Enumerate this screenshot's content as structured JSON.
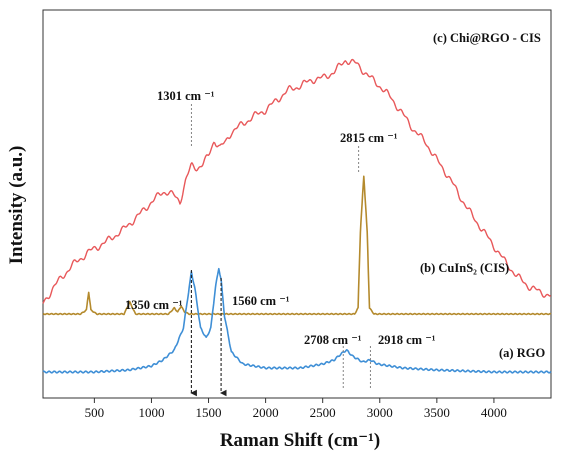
{
  "chart_data": {
    "type": "line",
    "xlabel": "Raman Shift (cm⁻¹)",
    "ylabel": "Intensity (a.u.)",
    "xlim": [
      50,
      4500
    ],
    "x_ticks": [
      500,
      1000,
      1500,
      2000,
      2500,
      3000,
      3500,
      4000
    ],
    "x_tick_labels": [
      "500",
      "1000",
      "1500",
      "2000",
      "2500",
      "3000",
      "3500",
      "4000"
    ],
    "y_ticks_shown": false,
    "grid": false,
    "series": [
      {
        "name": "(c) Chi@RGO - CIS",
        "color": "#e8585a",
        "x": [
          50,
          150,
          300,
          450,
          600,
          750,
          900,
          1000,
          1100,
          1150,
          1200,
          1250,
          1300,
          1350,
          1400,
          1450,
          1500,
          1550,
          1600,
          1650,
          1700,
          1800,
          1900,
          2000,
          2100,
          2200,
          2300,
          2400,
          2500,
          2600,
          2700,
          2800,
          2900,
          3000,
          3100,
          3200,
          3300,
          3400,
          3500,
          3600,
          3700,
          3800,
          3900,
          4000,
          4100,
          4200,
          4300,
          4400,
          4500
        ],
        "y": [
          0.34,
          0.43,
          0.53,
          0.6,
          0.65,
          0.71,
          0.79,
          0.85,
          0.9,
          0.9,
          0.88,
          0.85,
          0.96,
          1.03,
          1.02,
          1.04,
          1.08,
          1.16,
          1.12,
          1.15,
          1.2,
          1.24,
          1.28,
          1.31,
          1.36,
          1.41,
          1.43,
          1.46,
          1.47,
          1.5,
          1.56,
          1.54,
          1.48,
          1.43,
          1.37,
          1.29,
          1.21,
          1.15,
          1.06,
          0.98,
          0.88,
          0.79,
          0.71,
          0.63,
          0.55,
          0.48,
          0.43,
          0.4,
          0.38
        ]
      },
      {
        "name": "(b) CuInS₂ (CIS)",
        "color": "#b48a2d",
        "x": [
          50,
          380,
          430,
          450,
          470,
          520,
          760,
          810,
          860,
          1150,
          1200,
          1230,
          1260,
          1290,
          1330,
          2780,
          2810,
          2830,
          2860,
          2890,
          2910,
          2950,
          4500
        ],
        "y": [
          0.29,
          0.29,
          0.31,
          0.4,
          0.31,
          0.29,
          0.29,
          0.35,
          0.29,
          0.29,
          0.32,
          0.3,
          0.33,
          0.3,
          0.29,
          0.29,
          0.32,
          0.7,
          0.98,
          0.7,
          0.32,
          0.29,
          0.29
        ]
      },
      {
        "name": "(a) RGO",
        "color": "#3f8fd6",
        "x": [
          50,
          500,
          800,
          1000,
          1100,
          1200,
          1280,
          1330,
          1350,
          1380,
          1430,
          1480,
          1520,
          1560,
          1590,
          1610,
          1640,
          1700,
          1800,
          2000,
          2300,
          2500,
          2600,
          2660,
          2708,
          2760,
          2850,
          2918,
          2980,
          3200,
          3500,
          4000,
          4500
        ],
        "y": [
          0.0,
          0.0,
          0.01,
          0.03,
          0.06,
          0.11,
          0.22,
          0.42,
          0.5,
          0.42,
          0.22,
          0.17,
          0.22,
          0.42,
          0.52,
          0.46,
          0.28,
          0.1,
          0.04,
          0.02,
          0.02,
          0.04,
          0.06,
          0.09,
          0.11,
          0.08,
          0.05,
          0.06,
          0.04,
          0.02,
          0.01,
          0.0,
          0.0
        ]
      }
    ],
    "series_labels": [
      "(c) Chi@RGO - CIS",
      "(b) CuInS₂ (CIS)",
      "(a) RGO"
    ],
    "annotations": [
      {
        "text": "1301 cm ⁻¹",
        "x": 1350,
        "series": 0
      },
      {
        "text": "2815 cm ⁻¹",
        "x": 2815,
        "series": 1
      },
      {
        "text": "1350 cm ⁻¹",
        "x": 1350,
        "series": 2,
        "arrow": true
      },
      {
        "text": "1560 cm ⁻¹",
        "x": 1610,
        "series": 2,
        "arrow": true
      },
      {
        "text": "2708 cm ⁻¹",
        "x": 2680,
        "series": 2
      },
      {
        "text": "2918 cm ⁻¹",
        "x": 2918,
        "series": 2
      }
    ]
  }
}
